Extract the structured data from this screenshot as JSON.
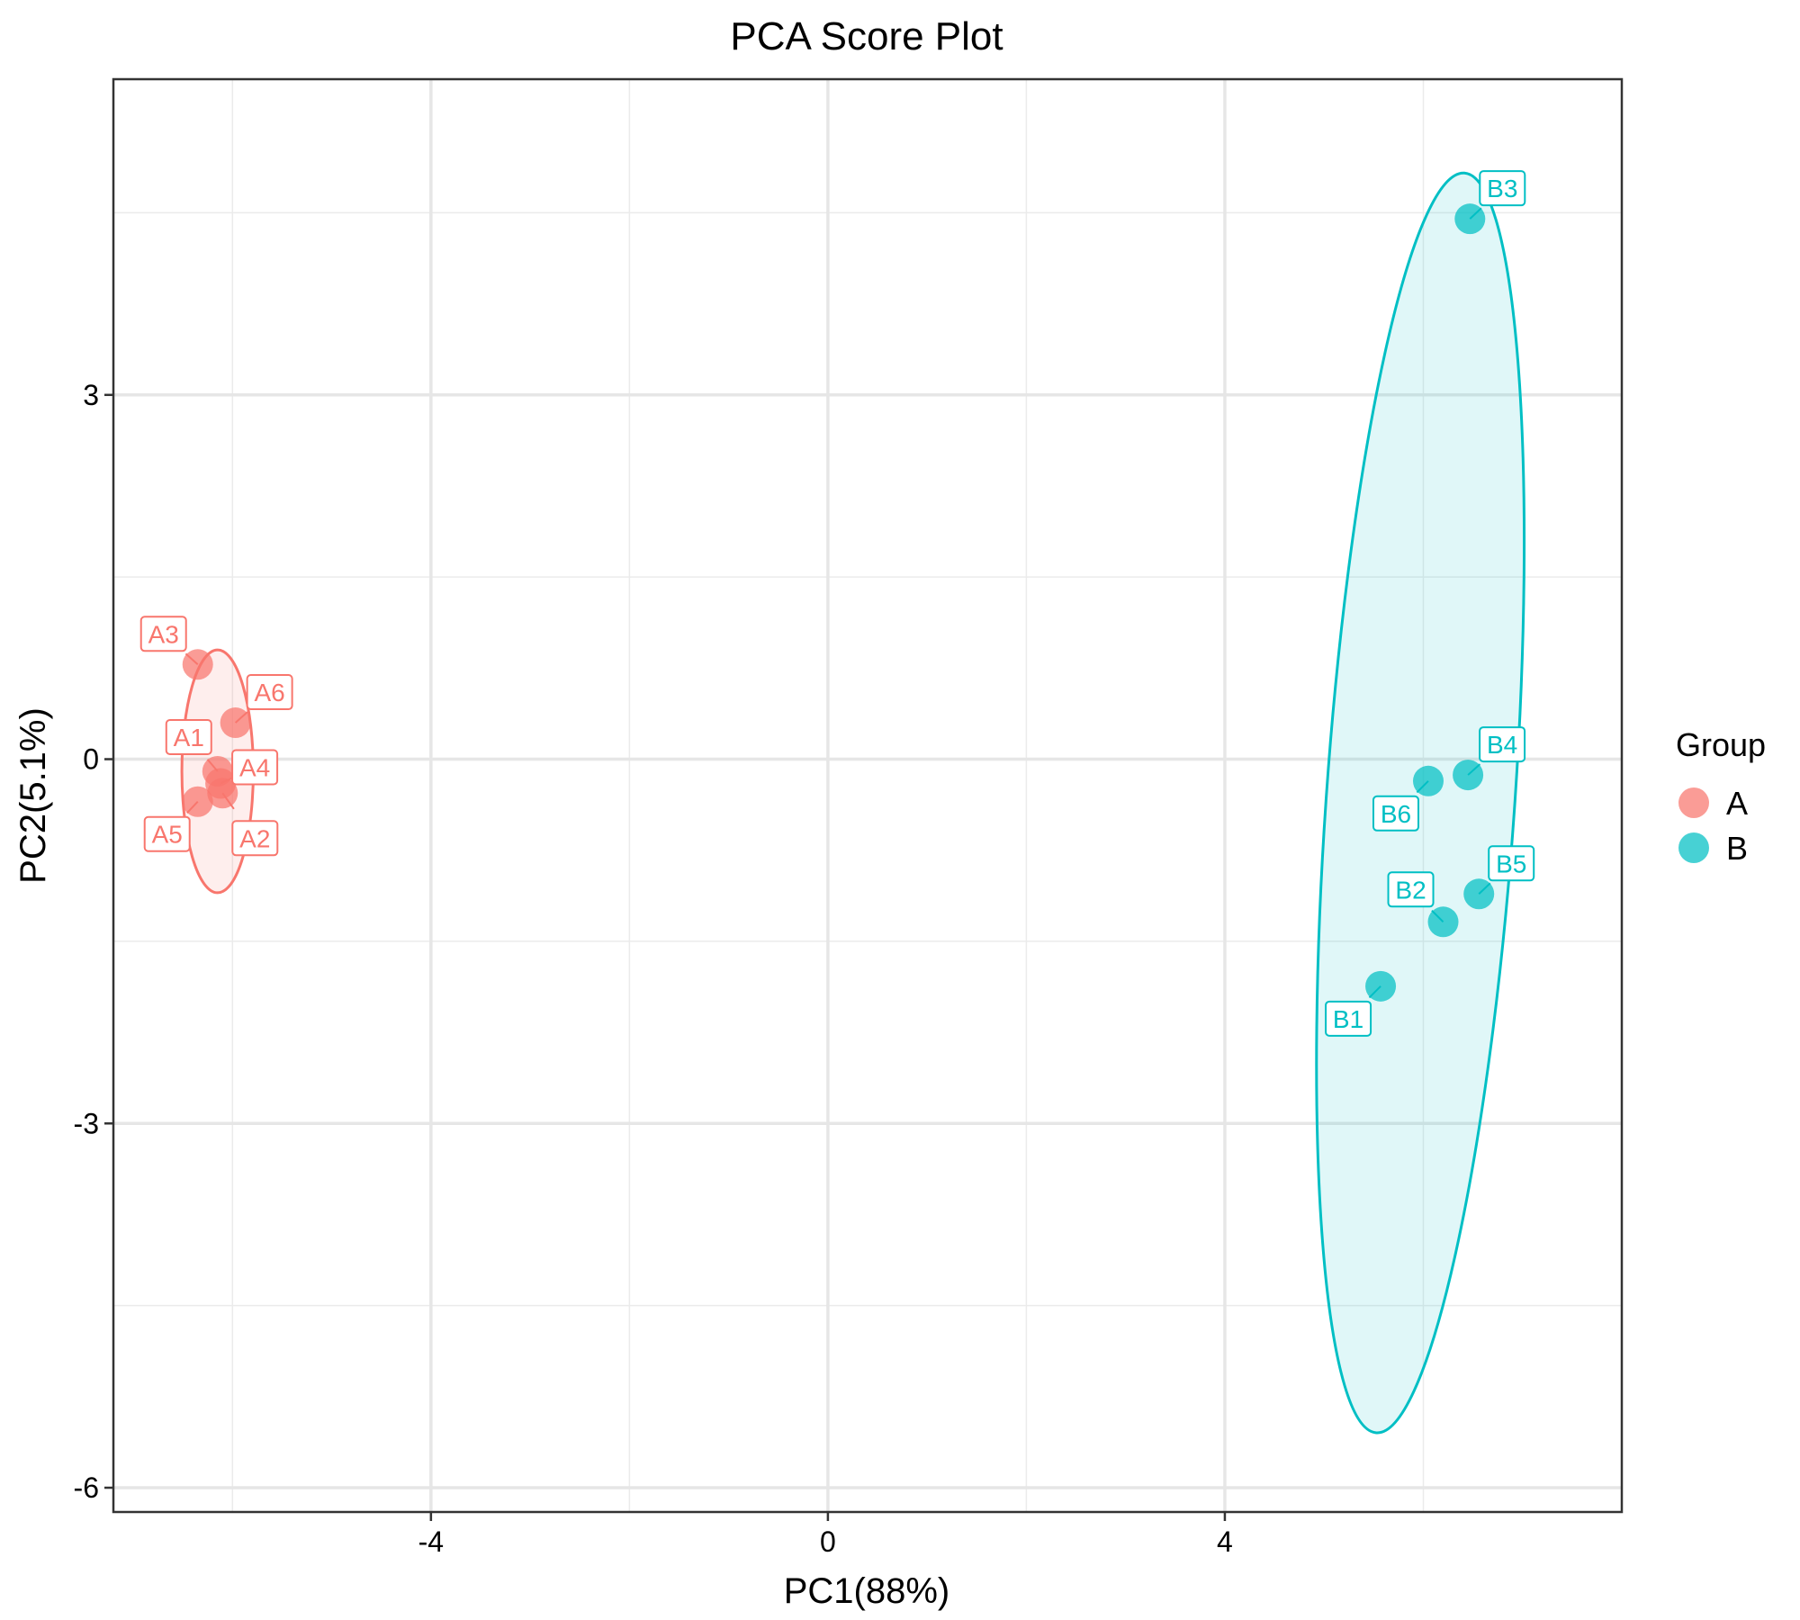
{
  "chart_data": {
    "type": "scatter",
    "title": "PCA Score Plot",
    "xlabel": "PC1(88%)",
    "ylabel": "PC2(5.1%)",
    "xlim": [
      -7.2,
      8.0
    ],
    "ylim": [
      -6.2,
      5.6
    ],
    "xticks": [
      -4,
      0,
      4
    ],
    "xtick_labels": [
      "-4",
      "0",
      "4"
    ],
    "yticks": [
      -6,
      -3,
      0,
      3
    ],
    "ytick_labels": [
      "-6",
      "-3",
      "0",
      "3"
    ],
    "x_minor_gridlines": [
      -6,
      -2,
      2,
      6
    ],
    "y_minor_gridlines": [
      -4.5,
      -1.5,
      1.5,
      4.5
    ],
    "grid": true,
    "legend": {
      "title": "Group",
      "position": "right"
    },
    "series": [
      {
        "name": "A",
        "color": "#F8766D",
        "ellipse": {
          "cx": -6.15,
          "cy": -0.1,
          "rx": 0.36,
          "ry": 1.0,
          "angle_deg": 0
        },
        "points": [
          {
            "label": "A1",
            "x": -6.15,
            "y": -0.1
          },
          {
            "label": "A2",
            "x": -6.1,
            "y": -0.28
          },
          {
            "label": "A3",
            "x": -6.35,
            "y": 0.78
          },
          {
            "label": "A4",
            "x": -6.12,
            "y": -0.2
          },
          {
            "label": "A5",
            "x": -6.35,
            "y": -0.35
          },
          {
            "label": "A6",
            "x": -5.97,
            "y": 0.3
          }
        ]
      },
      {
        "name": "B",
        "color": "#00BFC4",
        "ellipse": {
          "cx": 5.97,
          "cy": -0.36,
          "rx": 0.95,
          "ry": 5.2,
          "angle_deg": 4
        },
        "points": [
          {
            "label": "B1",
            "x": 5.57,
            "y": -1.87
          },
          {
            "label": "B2",
            "x": 6.2,
            "y": -1.34
          },
          {
            "label": "B3",
            "x": 6.47,
            "y": 4.45
          },
          {
            "label": "B4",
            "x": 6.45,
            "y": -0.13
          },
          {
            "label": "B5",
            "x": 6.56,
            "y": -1.11
          },
          {
            "label": "B6",
            "x": 6.05,
            "y": -0.18
          }
        ]
      }
    ]
  }
}
